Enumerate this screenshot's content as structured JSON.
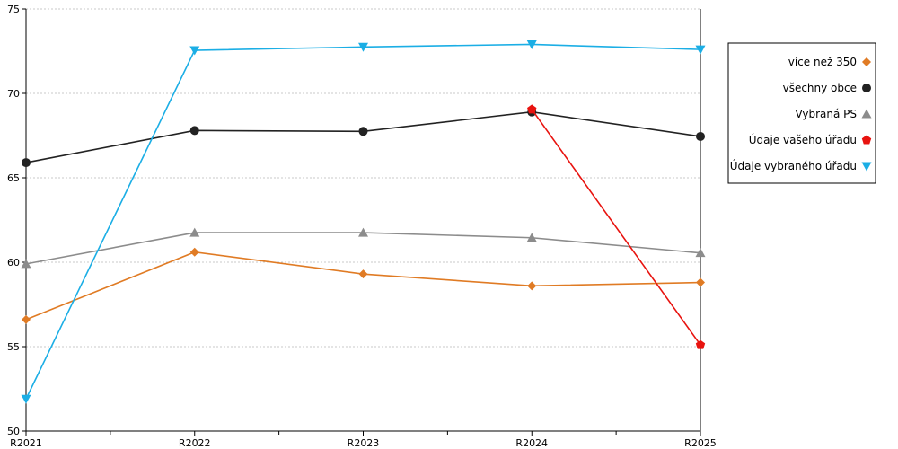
{
  "chart_data": {
    "type": "line",
    "categories": [
      "R2021",
      "R2022",
      "R2023",
      "R2024",
      "R2025"
    ],
    "ylim": [
      50,
      75
    ],
    "yticks": [
      50,
      55,
      60,
      65,
      70,
      75
    ],
    "grid": "horizontal-dotted",
    "legend_position": "right",
    "series": [
      {
        "name": "více než 350",
        "color": "#E07B24",
        "marker": "diamond",
        "values": [
          56.6,
          60.6,
          59.3,
          58.6,
          58.8
        ]
      },
      {
        "name": "všechny obce",
        "color": "#222222",
        "marker": "circle",
        "values": [
          65.9,
          67.8,
          67.75,
          68.9,
          67.45
        ]
      },
      {
        "name": "Vybraná PS",
        "color": "#8C8C8C",
        "marker": "triangle-up",
        "values": [
          59.9,
          61.75,
          61.75,
          61.45,
          60.55
        ]
      },
      {
        "name": "Údaje vašeho úřadu",
        "color": "#E8130F",
        "marker": "pentagon",
        "values": [
          null,
          null,
          null,
          69.05,
          55.1
        ]
      },
      {
        "name": "Údaje vybraného úřadu",
        "color": "#1BAEE5",
        "marker": "triangle-down",
        "values": [
          51.9,
          72.55,
          72.75,
          72.9,
          72.6
        ]
      }
    ]
  }
}
